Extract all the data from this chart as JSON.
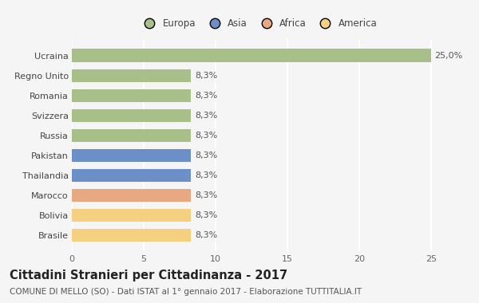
{
  "categories": [
    "Brasile",
    "Bolivia",
    "Marocco",
    "Thailandia",
    "Pakistan",
    "Russia",
    "Svizzera",
    "Romania",
    "Regno Unito",
    "Ucraina"
  ],
  "values": [
    8.3,
    8.3,
    8.3,
    8.3,
    8.3,
    8.3,
    8.3,
    8.3,
    8.3,
    25.0
  ],
  "colors": [
    "#f5d080",
    "#f5d080",
    "#e8a882",
    "#6d8fc7",
    "#6d8fc7",
    "#a8bf8a",
    "#a8bf8a",
    "#a8bf8a",
    "#a8bf8a",
    "#a8bf8a"
  ],
  "labels": [
    "8,3%",
    "8,3%",
    "8,3%",
    "8,3%",
    "8,3%",
    "8,3%",
    "8,3%",
    "8,3%",
    "8,3%",
    "25,0%"
  ],
  "legend": [
    {
      "label": "Europa",
      "color": "#a8bf8a"
    },
    {
      "label": "Asia",
      "color": "#6d8fc7"
    },
    {
      "label": "Africa",
      "color": "#e8a882"
    },
    {
      "label": "America",
      "color": "#f5d080"
    }
  ],
  "title": "Cittadini Stranieri per Cittadinanza - 2017",
  "subtitle": "COMUNE DI MELLO (SO) - Dati ISTAT al 1° gennaio 2017 - Elaborazione TUTTITALIA.IT",
  "xlim": [
    0,
    26
  ],
  "xticks": [
    0,
    5,
    10,
    15,
    20,
    25
  ],
  "bg_color": "#f5f5f5",
  "bar_edge_color": "none",
  "grid_color": "#ffffff",
  "title_fontsize": 10.5,
  "subtitle_fontsize": 7.5,
  "tick_fontsize": 8,
  "label_fontsize": 8,
  "legend_fontsize": 8.5
}
